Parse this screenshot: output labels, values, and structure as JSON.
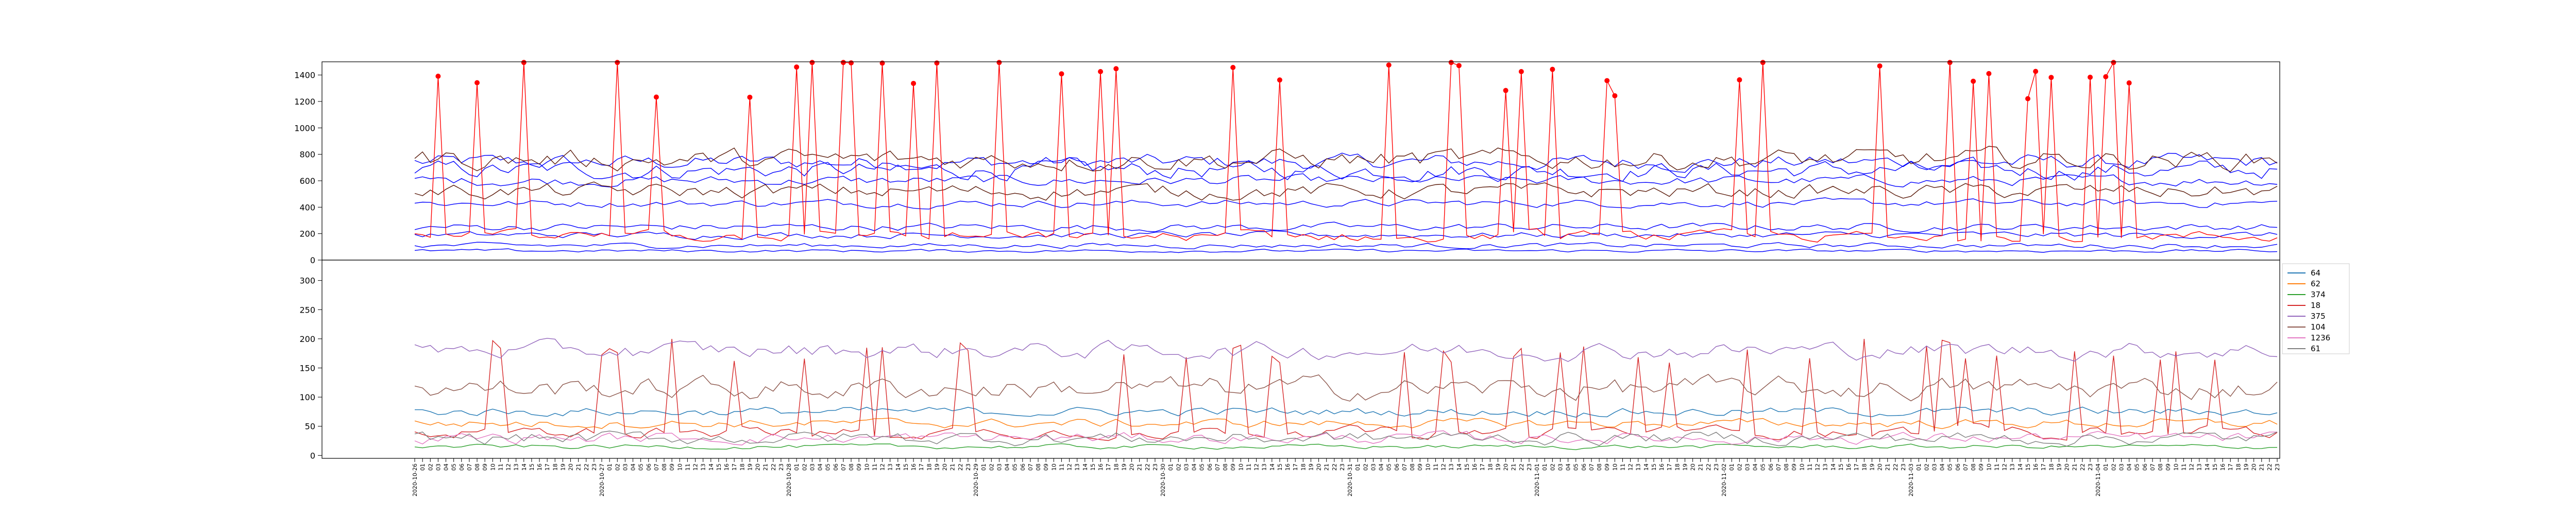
{
  "chart_data": [
    {
      "type": "line",
      "title": "",
      "xlabel": "",
      "ylabel": "",
      "ylim": [
        0,
        1500
      ],
      "yticks": [
        0,
        200,
        400,
        600,
        800,
        1000,
        1200,
        1400
      ],
      "grid": false,
      "legend": "none",
      "series": [
        {
          "color": "#0000ff",
          "base": 740,
          "noise": 60
        },
        {
          "color": "#0000ff",
          "base": 680,
          "noise": 70
        },
        {
          "color": "#0000ff",
          "base": 600,
          "noise": 40
        },
        {
          "color": "#0000ff",
          "base": 430,
          "noise": 30
        },
        {
          "color": "#0000ff",
          "base": 250,
          "noise": 30
        },
        {
          "color": "#0000ff",
          "base": 190,
          "noise": 25
        },
        {
          "color": "#0000ff",
          "base": 110,
          "noise": 20
        },
        {
          "color": "#0000ff",
          "base": 70,
          "noise": 12
        },
        {
          "color": "#5a1a0a",
          "base": 760,
          "noise": 80
        },
        {
          "color": "#5a1a0a",
          "base": 520,
          "noise": 60
        },
        {
          "color": "#ff0000",
          "base": 180,
          "noise": 40,
          "spiky": true,
          "spike": 1200
        }
      ],
      "markers": {
        "color": "#ff0000",
        "kind": "peaks-of-red-series"
      }
    },
    {
      "type": "line",
      "title": "",
      "xlabel": "",
      "ylabel": "",
      "ylim": [
        -5,
        335
      ],
      "yticks": [
        0,
        50,
        100,
        150,
        200,
        250,
        300
      ],
      "grid": false,
      "legend": "right",
      "series": [
        {
          "name": "64",
          "color": "#1f77b4",
          "base": 75,
          "noise": 8
        },
        {
          "name": "62",
          "color": "#ff7f0e",
          "base": 55,
          "noise": 8
        },
        {
          "name": "374",
          "color": "#2ca02c",
          "base": 15,
          "noise": 4
        },
        {
          "name": "18",
          "color": "#d62728",
          "base": 40,
          "noise": 10,
          "spiky": true,
          "spike": 140
        },
        {
          "name": "375",
          "color": "#9467bd",
          "base": 180,
          "noise": 15
        },
        {
          "name": "104",
          "color": "#8c564b",
          "base": 115,
          "noise": 20
        },
        {
          "name": "1236",
          "color": "#e377c2",
          "base": 30,
          "noise": 10
        },
        {
          "name": "61",
          "color": "#7f7f7f",
          "base": 30,
          "noise": 12
        }
      ]
    }
  ],
  "x_axis": {
    "month_ticks": [
      "2020-10-26",
      "2020-10-27",
      "2020-10-28",
      "2020-10-29",
      "2020-10-30",
      "2020-10-31",
      "2020-11-01",
      "2020-11-02",
      "2020-11-03",
      "2020-11-04"
    ],
    "hour_ticks": [
      "01",
      "02",
      "03",
      "04",
      "05",
      "06",
      "07",
      "08",
      "09",
      "10",
      "11",
      "12",
      "13",
      "14",
      "15",
      "16",
      "17",
      "18",
      "19",
      "20",
      "21",
      "22",
      "23"
    ]
  }
}
